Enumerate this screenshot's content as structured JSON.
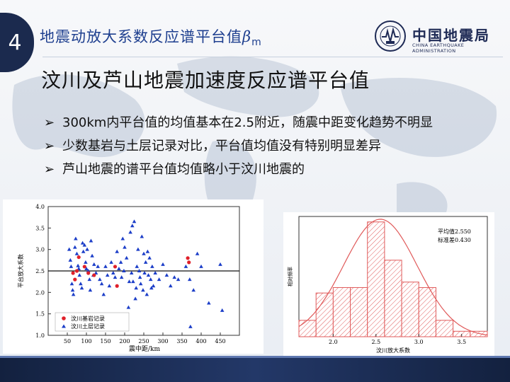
{
  "slide_number": "4",
  "topic": {
    "prefix": "地震动放大系数反应谱平台值",
    "symbol": "β",
    "subscript": "m"
  },
  "logo": {
    "name_zh": "中国地震局",
    "name_en": "CHINA EARTHQUAKE ADMINISTRATION"
  },
  "headline": "汶川及芦山地震加速度反应谱平台值",
  "bullets": [
    "300km内平台值的均值基本在2.5附近，随震中距变化趋势不明显",
    "少数基岩与土层记录对比，平台值均值没有特别明显差异",
    "芦山地震的谱平台值均值略小于汶川地震的"
  ],
  "colors": {
    "accent_blue": "#1e3f8f",
    "dark_navy": "#1b2a4e",
    "scatter_red": "#e0202a",
    "scatter_blue": "#1c3ec8",
    "hist_red": "#e05a5a"
  },
  "chart_data": [
    {
      "type": "scatter",
      "xlabel": "震中距/km",
      "ylabel": "平台放大系数",
      "xlim": [
        0,
        500
      ],
      "ylim": [
        1.0,
        4.0
      ],
      "xticks": [
        50,
        100,
        150,
        200,
        250,
        300,
        350,
        400,
        450
      ],
      "yticks": [
        "1.0",
        "1.5",
        "2.0",
        "2.5",
        "3.0",
        "3.5",
        "4.0"
      ],
      "reference_line": 2.5,
      "legend_position": "bottom-left",
      "series": [
        {
          "name": "汶川基岩记录",
          "marker": "circle",
          "color": "#e0202a",
          "points": [
            [
              65,
              2.45
            ],
            [
              70,
              2.3
            ],
            [
              75,
              2.5
            ],
            [
              80,
              2.82
            ],
            [
              95,
              2.6
            ],
            [
              105,
              2.45
            ],
            [
              120,
              2.4
            ],
            [
              175,
              2.6
            ],
            [
              180,
              2.15
            ],
            [
              365,
              2.8
            ],
            [
              368,
              2.7
            ]
          ]
        },
        {
          "name": "汶川土层记录",
          "marker": "triangle",
          "color": "#1c3ec8",
          "points": [
            [
              55,
              3.0
            ],
            [
              58,
              2.75
            ],
            [
              60,
              2.6
            ],
            [
              62,
              2.2
            ],
            [
              64,
              2.05
            ],
            [
              66,
              1.95
            ],
            [
              70,
              3.05
            ],
            [
              72,
              3.25
            ],
            [
              75,
              2.9
            ],
            [
              78,
              2.62
            ],
            [
              80,
              2.55
            ],
            [
              82,
              2.4
            ],
            [
              85,
              2.2
            ],
            [
              88,
              2.1
            ],
            [
              90,
              3.15
            ],
            [
              92,
              2.95
            ],
            [
              95,
              3.1
            ],
            [
              98,
              2.7
            ],
            [
              100,
              2.55
            ],
            [
              102,
              3.0
            ],
            [
              105,
              2.5
            ],
            [
              108,
              2.3
            ],
            [
              110,
              2.05
            ],
            [
              112,
              3.2
            ],
            [
              115,
              2.85
            ],
            [
              118,
              2.4
            ],
            [
              120,
              2.65
            ],
            [
              125,
              2.45
            ],
            [
              130,
              2.6
            ],
            [
              135,
              2.3
            ],
            [
              140,
              2.2
            ],
            [
              145,
              1.95
            ],
            [
              150,
              2.6
            ],
            [
              155,
              2.4
            ],
            [
              160,
              2.15
            ],
            [
              165,
              2.7
            ],
            [
              170,
              2.45
            ],
            [
              175,
              2.35
            ],
            [
              180,
              2.95
            ],
            [
              185,
              2.55
            ],
            [
              190,
              2.7
            ],
            [
              192,
              2.35
            ],
            [
              195,
              3.25
            ],
            [
              198,
              2.5
            ],
            [
              200,
              3.05
            ],
            [
              205,
              2.8
            ],
            [
              210,
              1.65
            ],
            [
              212,
              2.25
            ],
            [
              215,
              3.4
            ],
            [
              218,
              2.45
            ],
            [
              220,
              3.55
            ],
            [
              222,
              2.25
            ],
            [
              225,
              3.65
            ],
            [
              228,
              1.85
            ],
            [
              230,
              2.1
            ],
            [
              232,
              2.6
            ],
            [
              235,
              3.0
            ],
            [
              238,
              2.5
            ],
            [
              240,
              2.35
            ],
            [
              242,
              2.2
            ],
            [
              245,
              3.3
            ],
            [
              248,
              2.05
            ],
            [
              250,
              2.9
            ],
            [
              252,
              2.45
            ],
            [
              255,
              2.7
            ],
            [
              258,
              1.95
            ],
            [
              260,
              2.95
            ],
            [
              262,
              2.4
            ],
            [
              265,
              2.8
            ],
            [
              268,
              2.3
            ],
            [
              270,
              2.1
            ],
            [
              272,
              2.6
            ],
            [
              275,
              2.15
            ],
            [
              280,
              2.45
            ],
            [
              290,
              2.3
            ],
            [
              300,
              2.65
            ],
            [
              310,
              2.4
            ],
            [
              320,
              2.15
            ],
            [
              330,
              2.35
            ],
            [
              340,
              2.3
            ],
            [
              360,
              2.6
            ],
            [
              370,
              2.3
            ],
            [
              372,
              1.2
            ],
            [
              380,
              2.05
            ],
            [
              390,
              2.9
            ],
            [
              400,
              2.6
            ],
            [
              420,
              1.75
            ],
            [
              450,
              2.65
            ],
            [
              455,
              1.58
            ]
          ]
        }
      ]
    },
    {
      "type": "bar",
      "subtype": "histogram",
      "xlabel": "汶川放大系数",
      "ylabel": "相对频率",
      "xticks": [
        "2.0",
        "2.5",
        "3.0",
        "3.5"
      ],
      "bin_width": 0.2,
      "bin_starts": [
        1.6,
        1.8,
        2.0,
        2.2,
        2.4,
        2.6,
        2.8,
        3.0,
        3.2,
        3.4,
        3.6
      ],
      "frequencies": [
        3,
        8,
        9,
        9,
        21,
        14,
        10,
        9,
        3,
        1,
        1
      ],
      "ylim": [
        0,
        20
      ],
      "yticks": [
        "0",
        "5",
        "10",
        "15",
        "20"
      ],
      "normal_curve": {
        "mean": 2.55,
        "std": 0.43
      },
      "annotations": [
        "平均值2.550",
        "标准差0.430"
      ]
    }
  ]
}
